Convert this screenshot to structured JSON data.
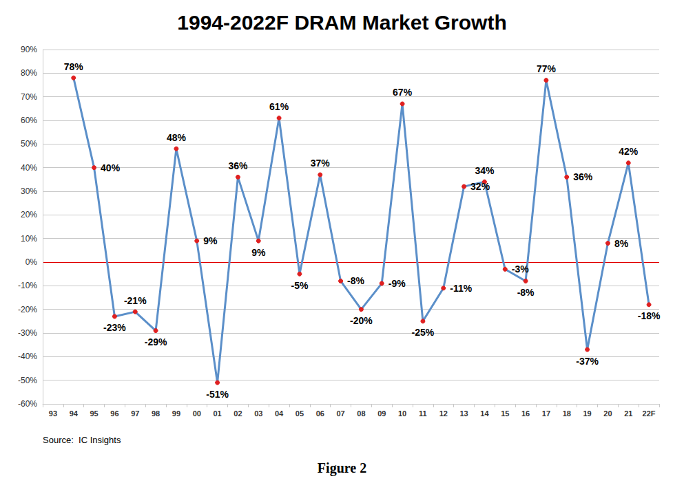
{
  "chart_data": {
    "type": "line",
    "title": "1994-2022F DRAM Market Growth",
    "source": "Source:  IC Insights",
    "caption": "Figure 2",
    "categories": [
      "93",
      "94",
      "95",
      "96",
      "97",
      "98",
      "99",
      "00",
      "01",
      "02",
      "03",
      "04",
      "05",
      "06",
      "07",
      "08",
      "09",
      "10",
      "11",
      "12",
      "13",
      "14",
      "15",
      "16",
      "17",
      "18",
      "19",
      "20",
      "21",
      "22F"
    ],
    "values": [
      null,
      78,
      40,
      -23,
      -21,
      -29,
      48,
      9,
      -51,
      36,
      9,
      61,
      -5,
      37,
      -8,
      -20,
      -9,
      67,
      -25,
      -11,
      32,
      34,
      -3,
      -8,
      77,
      36,
      -37,
      8,
      42,
      -18
    ],
    "value_labels": [
      null,
      "78%",
      "40%",
      "-23%",
      "-21%",
      "-29%",
      "48%",
      "9%",
      "-51%",
      "36%",
      "9%",
      "61%",
      "-5%",
      "37%",
      "-8%",
      "-20%",
      "-9%",
      "67%",
      "-25%",
      "-11%",
      "32%",
      "34%",
      "-3%",
      "-8%",
      "77%",
      "36%",
      "-37%",
      "8%",
      "42%",
      "-18%"
    ],
    "color": "#5b8fc9",
    "marker": "circle",
    "ylim": [
      -60,
      90
    ],
    "yticks": [
      {
        "value": -60,
        "label": "-60%"
      },
      {
        "value": -50,
        "label": "-50%"
      },
      {
        "value": -40,
        "label": "-40%"
      },
      {
        "value": -30,
        "label": "-30%"
      },
      {
        "value": -20,
        "label": "-20%"
      },
      {
        "value": -10,
        "label": "-10%"
      },
      {
        "value": 0,
        "label": "0%"
      },
      {
        "value": 10,
        "label": "10%"
      },
      {
        "value": 20,
        "label": "20%"
      },
      {
        "value": 30,
        "label": "30%"
      },
      {
        "value": 40,
        "label": "40%"
      },
      {
        "value": 50,
        "label": "50%"
      },
      {
        "value": 60,
        "label": "60%"
      },
      {
        "value": 70,
        "label": "70%"
      },
      {
        "value": 80,
        "label": "80%"
      },
      {
        "value": 90,
        "label": "90%"
      }
    ],
    "grid": true,
    "data_labels": true
  }
}
